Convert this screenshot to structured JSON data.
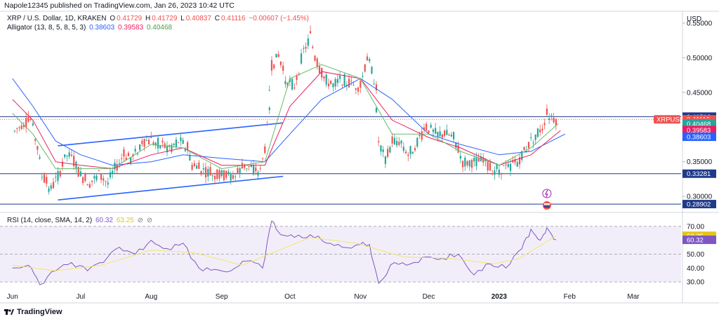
{
  "header": {
    "published_text": "Napole12345 published on TradingView.com, Jan 26, 2023 10:42 UTC"
  },
  "legend": {
    "symbol_text": "XRP / U.S. Dollar, 1D, KRAKEN",
    "o_label": "O",
    "o_value": "0.41729",
    "h_label": "H",
    "h_value": "0.41729",
    "l_label": "L",
    "l_value": "0.40837",
    "c_label": "C",
    "c_value": "0.41116",
    "change": "−0.00607 (−1.45%)",
    "alligator_label": "Alligator (13, 8, 5, 8, 5, 3)",
    "alligator_jaw": "0.38603",
    "alligator_teeth": "0.39583",
    "alligator_lips": "0.40468",
    "rsi_label": "RSI (14, close, SMA, 14, 2)",
    "rsi_value": "60.32",
    "rsi_sma_value": "63.25"
  },
  "currency": "USD",
  "footer": {
    "brand": "TradingView"
  },
  "colors": {
    "up": "#26a69a",
    "down": "#ef5350",
    "jaw": "#2962ff",
    "teeth": "#e91e63",
    "lips": "#66bb6a",
    "rsi": "#7e57c2",
    "rsi_sma": "#f5e56b",
    "channel": "#2962ff",
    "hline": "#1e3a8a"
  },
  "chart_data": [
    {
      "type": "candlestick",
      "title": "XRP / U.S. Dollar, 1D, KRAKEN",
      "ylim": [
        0.28,
        0.565
      ],
      "x_tick_labels": [
        "Jun",
        "Jul",
        "Aug",
        "Sep",
        "Oct",
        "Nov",
        "Dec",
        "2023",
        "Feb",
        "Mar"
      ],
      "y_tick_labels": [
        "0.55000",
        "0.50000",
        "0.45000",
        "0.35000",
        "0.30000"
      ],
      "y_ticks": [
        0.55,
        0.5,
        0.45,
        0.35,
        0.3
      ],
      "price_labels": [
        {
          "text": "0.41510",
          "value": 0.4151,
          "color": "#1e3a8a"
        },
        {
          "text": "XRPUSD",
          "value": 0.41116,
          "color": "#ef5350"
        },
        {
          "text": "0.41116",
          "value": 0.41116,
          "color": "#ef5350"
        },
        {
          "text": "13:17:13",
          "value": 0.4065,
          "color": "#ef5350"
        },
        {
          "text": "0.40468",
          "value": 0.40468,
          "color": "#26a69a"
        },
        {
          "text": "0.39583",
          "value": 0.39583,
          "color": "#e91e63"
        },
        {
          "text": "0.38603",
          "value": 0.38603,
          "color": "#2962ff"
        },
        {
          "text": "0.33281",
          "value": 0.33281,
          "color": "#1e3a8a"
        },
        {
          "text": "0.28902",
          "value": 0.28902,
          "color": "#1e3a8a"
        }
      ],
      "horizontal_lines": [
        0.4151,
        0.33281,
        0.28902
      ],
      "channel_lines": [
        {
          "from": [
            "2022-06-21",
            0.373
          ],
          "to": [
            "2022-09-28",
            0.406
          ]
        },
        {
          "from": [
            "2022-06-21",
            0.295
          ],
          "to": [
            "2022-09-28",
            0.329
          ]
        }
      ],
      "close_series": [
        [
          "2022-06-01",
          0.39
        ],
        [
          "2022-06-05",
          0.405
        ],
        [
          "2022-06-09",
          0.41
        ],
        [
          "2022-06-12",
          0.37
        ],
        [
          "2022-06-14",
          0.33
        ],
        [
          "2022-06-18",
          0.31
        ],
        [
          "2022-06-21",
          0.33
        ],
        [
          "2022-06-25",
          0.36
        ],
        [
          "2022-06-28",
          0.35
        ],
        [
          "2022-07-01",
          0.33
        ],
        [
          "2022-07-05",
          0.32
        ],
        [
          "2022-07-09",
          0.33
        ],
        [
          "2022-07-13",
          0.32
        ],
        [
          "2022-07-16",
          0.34
        ],
        [
          "2022-07-20",
          0.36
        ],
        [
          "2022-07-24",
          0.355
        ],
        [
          "2022-07-28",
          0.38
        ],
        [
          "2022-08-01",
          0.38
        ],
        [
          "2022-08-05",
          0.375
        ],
        [
          "2022-08-09",
          0.37
        ],
        [
          "2022-08-13",
          0.38
        ],
        [
          "2022-08-17",
          0.37
        ],
        [
          "2022-08-19",
          0.345
        ],
        [
          "2022-08-22",
          0.34
        ],
        [
          "2022-08-26",
          0.335
        ],
        [
          "2022-08-30",
          0.33
        ],
        [
          "2022-09-03",
          0.33
        ],
        [
          "2022-09-07",
          0.33
        ],
        [
          "2022-09-11",
          0.345
        ],
        [
          "2022-09-15",
          0.34
        ],
        [
          "2022-09-18",
          0.335
        ],
        [
          "2022-09-20",
          0.37
        ],
        [
          "2022-09-22",
          0.42
        ],
        [
          "2022-09-23",
          0.49
        ],
        [
          "2022-09-26",
          0.5
        ],
        [
          "2022-09-29",
          0.47
        ],
        [
          "2022-10-03",
          0.46
        ],
        [
          "2022-10-07",
          0.51
        ],
        [
          "2022-10-10",
          0.53
        ],
        [
          "2022-10-12",
          0.5
        ],
        [
          "2022-10-16",
          0.47
        ],
        [
          "2022-10-20",
          0.46
        ],
        [
          "2022-10-24",
          0.47
        ],
        [
          "2022-10-28",
          0.46
        ],
        [
          "2022-11-01",
          0.46
        ],
        [
          "2022-11-04",
          0.5
        ],
        [
          "2022-11-06",
          0.48
        ],
        [
          "2022-11-08",
          0.46
        ],
        [
          "2022-11-09",
          0.38
        ],
        [
          "2022-11-12",
          0.35
        ],
        [
          "2022-11-15",
          0.38
        ],
        [
          "2022-11-19",
          0.38
        ],
        [
          "2022-11-22",
          0.36
        ],
        [
          "2022-11-26",
          0.38
        ],
        [
          "2022-11-30",
          0.4
        ],
        [
          "2022-12-04",
          0.39
        ],
        [
          "2022-12-08",
          0.39
        ],
        [
          "2022-12-12",
          0.385
        ],
        [
          "2022-12-16",
          0.35
        ],
        [
          "2022-12-20",
          0.35
        ],
        [
          "2022-12-24",
          0.35
        ],
        [
          "2022-12-28",
          0.34
        ],
        [
          "2023-01-01",
          0.34
        ],
        [
          "2023-01-05",
          0.34
        ],
        [
          "2023-01-09",
          0.35
        ],
        [
          "2023-01-13",
          0.37
        ],
        [
          "2023-01-17",
          0.39
        ],
        [
          "2023-01-20",
          0.4
        ],
        [
          "2023-01-22",
          0.42
        ],
        [
          "2023-01-26",
          0.41116
        ]
      ],
      "alligator": {
        "jaw": [
          [
            "2022-06-01",
            0.47
          ],
          [
            "2022-06-10",
            0.43
          ],
          [
            "2022-06-20",
            0.38
          ],
          [
            "2022-07-01",
            0.36
          ],
          [
            "2022-07-15",
            0.345
          ],
          [
            "2022-08-01",
            0.35
          ],
          [
            "2022-08-15",
            0.36
          ],
          [
            "2022-09-01",
            0.355
          ],
          [
            "2022-09-20",
            0.35
          ],
          [
            "2022-10-01",
            0.39
          ],
          [
            "2022-10-15",
            0.44
          ],
          [
            "2022-11-01",
            0.47
          ],
          [
            "2022-11-15",
            0.44
          ],
          [
            "2022-12-01",
            0.39
          ],
          [
            "2022-12-15",
            0.375
          ],
          [
            "2023-01-01",
            0.36
          ],
          [
            "2023-01-15",
            0.365
          ],
          [
            "2023-01-30",
            0.39
          ]
        ],
        "teeth": [
          [
            "2022-06-01",
            0.44
          ],
          [
            "2022-06-10",
            0.41
          ],
          [
            "2022-06-20",
            0.35
          ],
          [
            "2022-07-01",
            0.345
          ],
          [
            "2022-07-15",
            0.34
          ],
          [
            "2022-08-01",
            0.36
          ],
          [
            "2022-08-15",
            0.37
          ],
          [
            "2022-09-01",
            0.345
          ],
          [
            "2022-09-20",
            0.345
          ],
          [
            "2022-10-01",
            0.43
          ],
          [
            "2022-10-15",
            0.48
          ],
          [
            "2022-11-01",
            0.47
          ],
          [
            "2022-11-15",
            0.41
          ],
          [
            "2022-12-01",
            0.385
          ],
          [
            "2022-12-15",
            0.37
          ],
          [
            "2023-01-01",
            0.345
          ],
          [
            "2023-01-15",
            0.36
          ],
          [
            "2023-01-28",
            0.395
          ]
        ],
        "lips": [
          [
            "2022-06-01",
            0.42
          ],
          [
            "2022-06-10",
            0.39
          ],
          [
            "2022-06-20",
            0.34
          ],
          [
            "2022-07-01",
            0.34
          ],
          [
            "2022-07-15",
            0.34
          ],
          [
            "2022-08-01",
            0.375
          ],
          [
            "2022-08-15",
            0.37
          ],
          [
            "2022-09-01",
            0.34
          ],
          [
            "2022-09-20",
            0.35
          ],
          [
            "2022-10-01",
            0.47
          ],
          [
            "2022-10-15",
            0.49
          ],
          [
            "2022-11-01",
            0.47
          ],
          [
            "2022-11-15",
            0.39
          ],
          [
            "2022-12-01",
            0.39
          ],
          [
            "2022-12-15",
            0.365
          ],
          [
            "2023-01-01",
            0.345
          ],
          [
            "2023-01-15",
            0.37
          ],
          [
            "2023-01-27",
            0.405
          ]
        ]
      }
    },
    {
      "type": "line",
      "title": "RSI (14, close, SMA, 14, 2)",
      "ylim": [
        25,
        75
      ],
      "y_tick_labels": [
        "70.00",
        "50.00",
        "40.00",
        "30.00"
      ],
      "y_ticks": [
        70,
        50,
        40,
        30
      ],
      "band": [
        30,
        70
      ],
      "value_labels": [
        {
          "text": "63.25",
          "value": 63.25,
          "color": "#e3c41a"
        },
        {
          "text": "60.32",
          "value": 60.32,
          "color": "#7e57c2"
        }
      ],
      "series": [
        {
          "name": "RSI",
          "points": [
            [
              "2022-06-01",
              40
            ],
            [
              "2022-06-08",
              42
            ],
            [
              "2022-06-13",
              28
            ],
            [
              "2022-06-20",
              38
            ],
            [
              "2022-06-27",
              44
            ],
            [
              "2022-07-04",
              38
            ],
            [
              "2022-07-11",
              44
            ],
            [
              "2022-07-18",
              55
            ],
            [
              "2022-07-25",
              50
            ],
            [
              "2022-08-01",
              60
            ],
            [
              "2022-08-08",
              54
            ],
            [
              "2022-08-15",
              58
            ],
            [
              "2022-08-22",
              40
            ],
            [
              "2022-08-29",
              39
            ],
            [
              "2022-09-05",
              38
            ],
            [
              "2022-09-12",
              45
            ],
            [
              "2022-09-19",
              40
            ],
            [
              "2022-09-23",
              74
            ],
            [
              "2022-09-27",
              64
            ],
            [
              "2022-10-03",
              62
            ],
            [
              "2022-10-10",
              64
            ],
            [
              "2022-10-17",
              58
            ],
            [
              "2022-10-24",
              55
            ],
            [
              "2022-11-01",
              57
            ],
            [
              "2022-11-05",
              57
            ],
            [
              "2022-11-09",
              29
            ],
            [
              "2022-11-16",
              44
            ],
            [
              "2022-11-23",
              43
            ],
            [
              "2022-11-30",
              48
            ],
            [
              "2022-12-07",
              47
            ],
            [
              "2022-12-14",
              50
            ],
            [
              "2022-12-21",
              35
            ],
            [
              "2022-12-28",
              43
            ],
            [
              "2023-01-04",
              40
            ],
            [
              "2023-01-11",
              54
            ],
            [
              "2023-01-15",
              68
            ],
            [
              "2023-01-19",
              60
            ],
            [
              "2023-01-22",
              69
            ],
            [
              "2023-01-26",
              60.32
            ]
          ]
        },
        {
          "name": "RSI-based MA",
          "points": [
            [
              "2022-06-01",
              42
            ],
            [
              "2022-06-20",
              38
            ],
            [
              "2022-07-10",
              42
            ],
            [
              "2022-08-01",
              53
            ],
            [
              "2022-08-20",
              51
            ],
            [
              "2022-09-10",
              42
            ],
            [
              "2022-09-25",
              52
            ],
            [
              "2022-10-10",
              62
            ],
            [
              "2022-10-30",
              58
            ],
            [
              "2022-11-20",
              48
            ],
            [
              "2022-12-10",
              47
            ],
            [
              "2022-12-30",
              43
            ],
            [
              "2023-01-10",
              47
            ],
            [
              "2023-01-26",
              63.25
            ]
          ]
        }
      ]
    }
  ]
}
